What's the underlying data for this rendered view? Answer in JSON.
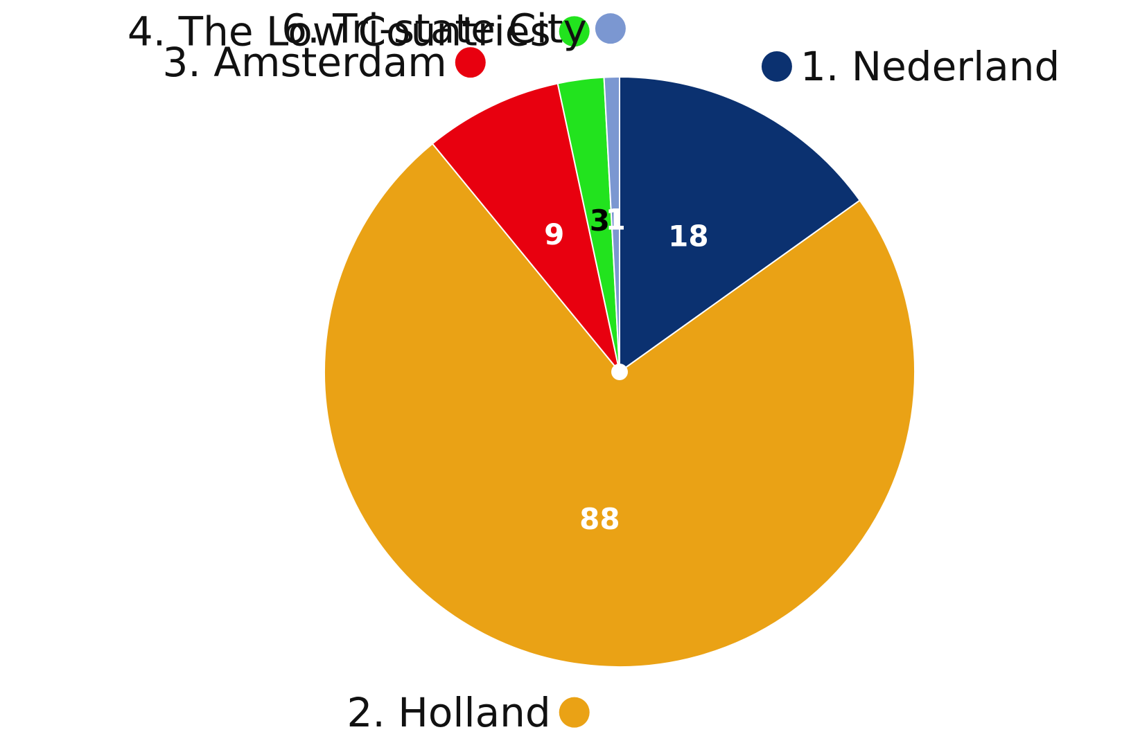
{
  "chart_data": {
    "type": "pie",
    "categories": [
      "1. Nederland",
      "2. Holland",
      "3. Amsterdam",
      "4. The Low Countries",
      "6. Tri-state City"
    ],
    "values": [
      18,
      88,
      9,
      3,
      1
    ],
    "colors": [
      "#0b3170",
      "#eaa215",
      "#e8000f",
      "#22e31e",
      "#7b97d1"
    ],
    "value_label_colors": [
      "#ffffff",
      "#ffffff",
      "#ffffff",
      "#000000",
      "#ffffff"
    ],
    "start_angle": 0,
    "direction": "clockwise"
  }
}
